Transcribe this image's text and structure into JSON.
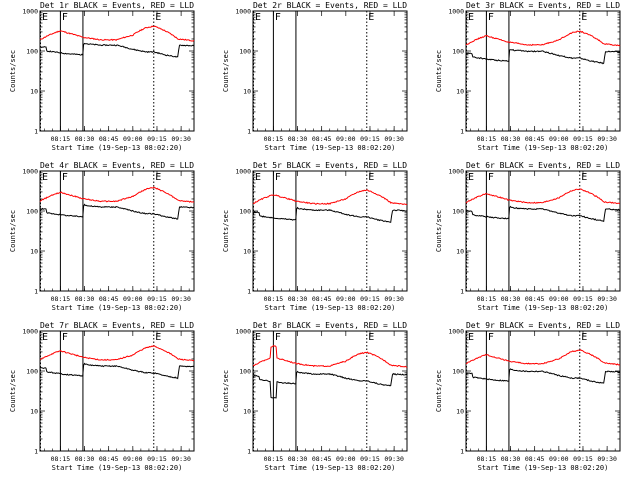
{
  "chart_data": {
    "type": "line",
    "layout": "3x3 grid",
    "colors": {
      "events": "#000000",
      "lld": "#ff0000"
    },
    "x_ticks": [
      "08:15",
      "08:30",
      "08:45",
      "09:00",
      "09:15",
      "09:30"
    ],
    "x_start": "08:02:20",
    "x_end": "09:38",
    "ylim": [
      1,
      1000
    ],
    "yscale": "log",
    "y_ticks": [
      "1",
      "10",
      "100",
      "1000"
    ],
    "ylabel": "Counts/sec",
    "xlabel": "Start Time (19-Sep-13 08:02:20)",
    "flags": [
      {
        "label": "E",
        "time": "08:02:20",
        "style": "dotted"
      },
      {
        "label": "F",
        "time": "08:15",
        "style": "solid"
      },
      {
        "label": "",
        "time": "08:29",
        "style": "solid"
      },
      {
        "label": "E",
        "time": "09:13",
        "style": "dotted"
      }
    ],
    "panels": [
      {
        "title": "Det 1r BLACK = Events, RED = LLD",
        "has_data": true,
        "events_scale": 1.0,
        "lld_scale": 1.0,
        "spike": false
      },
      {
        "title": "Det 2r BLACK = Events, RED = LLD",
        "has_data": false,
        "events_scale": 0,
        "lld_scale": 0,
        "spike": false
      },
      {
        "title": "Det 3r BLACK = Events, RED = LLD",
        "has_data": true,
        "events_scale": 0.7,
        "lld_scale": 0.75,
        "spike": false
      },
      {
        "title": "Det 4r BLACK = Events, RED = LLD",
        "has_data": true,
        "events_scale": 0.9,
        "lld_scale": 0.92,
        "spike": false
      },
      {
        "title": "Det 5r BLACK = Events, RED = LLD",
        "has_data": true,
        "events_scale": 0.75,
        "lld_scale": 0.8,
        "spike": false
      },
      {
        "title": "Det 6r BLACK = Events, RED = LLD",
        "has_data": true,
        "events_scale": 0.8,
        "lld_scale": 0.85,
        "spike": false
      },
      {
        "title": "Det 7r BLACK = Events, RED = LLD",
        "has_data": true,
        "events_scale": 0.95,
        "lld_scale": 1.0,
        "spike": false
      },
      {
        "title": "Det 8r BLACK = Events, RED = LLD",
        "has_data": true,
        "events_scale": 0.6,
        "lld_scale": 0.7,
        "spike": true
      },
      {
        "title": "Det 9r BLACK = Events, RED = LLD",
        "has_data": true,
        "events_scale": 0.7,
        "lld_scale": 0.8,
        "spike": false
      }
    ],
    "lld_profile": [
      {
        "t": "08:02:20",
        "v": 190
      },
      {
        "t": "08:09",
        "v": 260
      },
      {
        "t": "08:15",
        "v": 320
      },
      {
        "t": "08:20",
        "v": 280
      },
      {
        "t": "08:29",
        "v": 220
      },
      {
        "t": "08:40",
        "v": 190
      },
      {
        "t": "08:50",
        "v": 190
      },
      {
        "t": "09:00",
        "v": 250
      },
      {
        "t": "09:08",
        "v": 380
      },
      {
        "t": "09:13",
        "v": 420
      },
      {
        "t": "09:20",
        "v": 320
      },
      {
        "t": "09:28",
        "v": 200
      },
      {
        "t": "09:38",
        "v": 180
      }
    ],
    "events_profile": [
      {
        "t": "08:02:20",
        "v": 125
      },
      {
        "t": "08:06",
        "v": 125
      },
      {
        "t": "08:06:30",
        "v": 100
      },
      {
        "t": "08:15",
        "v": 90
      },
      {
        "t": "08:20",
        "v": 85
      },
      {
        "t": "08:29",
        "v": 80
      },
      {
        "t": "08:29:30",
        "v": 160
      },
      {
        "t": "08:32",
        "v": 150
      },
      {
        "t": "08:40",
        "v": 140
      },
      {
        "t": "08:50",
        "v": 140
      },
      {
        "t": "09:00",
        "v": 110
      },
      {
        "t": "09:08",
        "v": 95
      },
      {
        "t": "09:13",
        "v": 95
      },
      {
        "t": "09:20",
        "v": 80
      },
      {
        "t": "09:28",
        "v": 70
      },
      {
        "t": "09:29",
        "v": 140
      },
      {
        "t": "09:38",
        "v": 135
      }
    ]
  }
}
